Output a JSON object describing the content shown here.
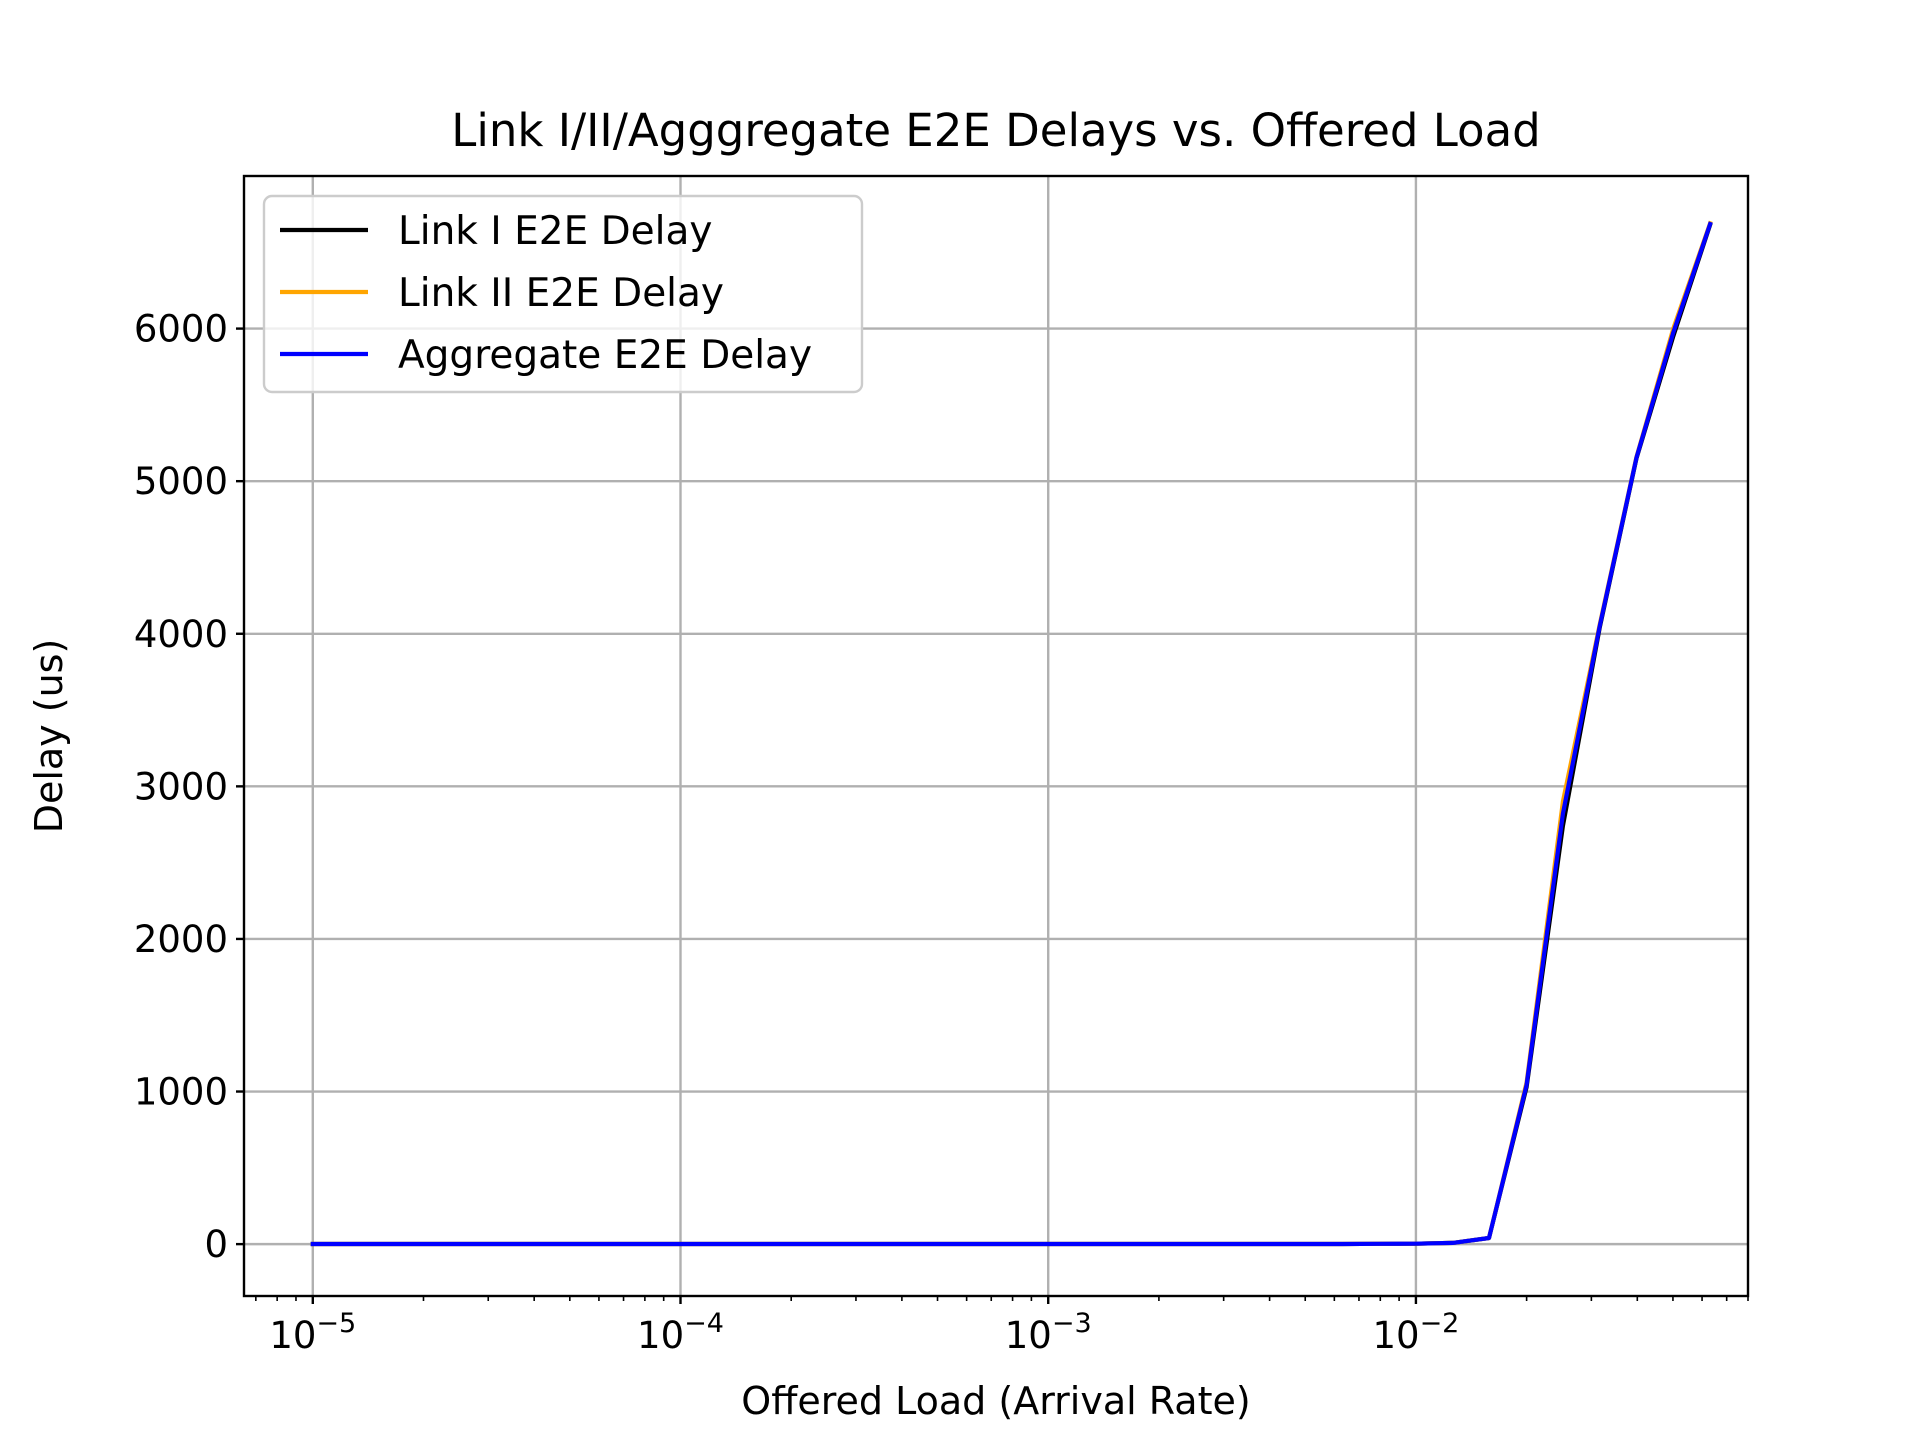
{
  "chart_data": {
    "type": "line",
    "title": "Link I/II/Agggregate E2E Delays vs. Offered Load",
    "xlabel": "Offered Load (Arrival Rate)",
    "ylabel": "Delay (us)",
    "xscale": "log",
    "xlim": [
      6.5e-06,
      0.08
    ],
    "ylim": [
      -340,
      7000
    ],
    "grid": true,
    "legend_position": "upper left",
    "x_ticks": [
      {
        "value": 1e-05,
        "base": "10",
        "exp": "−5"
      },
      {
        "value": 0.0001,
        "base": "10",
        "exp": "−4"
      },
      {
        "value": 0.001,
        "base": "10",
        "exp": "−3"
      },
      {
        "value": 0.01,
        "base": "10",
        "exp": "−2"
      }
    ],
    "y_ticks": [
      {
        "value": 0,
        "label": "0"
      },
      {
        "value": 1000,
        "label": "1000"
      },
      {
        "value": 2000,
        "label": "2000"
      },
      {
        "value": 3000,
        "label": "3000"
      },
      {
        "value": 4000,
        "label": "4000"
      },
      {
        "value": 5000,
        "label": "5000"
      },
      {
        "value": 6000,
        "label": "6000"
      }
    ],
    "x": [
      1e-05,
      1.26e-05,
      1.58e-05,
      2e-05,
      2.51e-05,
      3.16e-05,
      3.98e-05,
      5.01e-05,
      6.31e-05,
      7.94e-05,
      0.0001,
      0.000126,
      0.000158,
      0.0002,
      0.000251,
      0.000316,
      0.000398,
      0.000501,
      0.000631,
      0.000794,
      0.001,
      0.00126,
      0.00158,
      0.002,
      0.00251,
      0.00316,
      0.00398,
      0.00501,
      0.00631,
      0.00794,
      0.01,
      0.0126,
      0.0158,
      0.02,
      0.0251,
      0.0316,
      0.0398,
      0.0501,
      0.0631
    ],
    "series": [
      {
        "name": "Link I E2E Delay",
        "color": "#000000",
        "values": [
          1,
          1,
          1,
          1,
          1,
          1,
          1,
          1,
          1,
          1,
          1,
          1,
          1,
          1,
          1,
          1,
          1,
          1,
          1,
          1,
          1,
          1,
          1,
          1,
          1,
          1,
          1,
          1,
          1,
          2,
          3,
          8,
          40,
          1030,
          2740,
          4040,
          5150,
          5950,
          6680
        ]
      },
      {
        "name": "Link II E2E Delay",
        "color": "#ffa500",
        "values": [
          1,
          1,
          1,
          1,
          1,
          1,
          1,
          1,
          1,
          1,
          1,
          1,
          1,
          1,
          1,
          1,
          1,
          1,
          1,
          1,
          1,
          1,
          1,
          1,
          1,
          1,
          1,
          1,
          1,
          2,
          3,
          8,
          40,
          1060,
          2900,
          4060,
          5160,
          6000,
          6690
        ]
      },
      {
        "name": "Aggregate E2E Delay",
        "color": "#0000ff",
        "values": [
          1,
          1,
          1,
          1,
          1,
          1,
          1,
          1,
          1,
          1,
          1,
          1,
          1,
          1,
          1,
          1,
          1,
          1,
          1,
          1,
          1,
          1,
          1,
          1,
          1,
          1,
          1,
          1,
          1,
          2,
          3,
          8,
          40,
          1045,
          2820,
          4050,
          5155,
          5975,
          6685
        ]
      }
    ]
  }
}
